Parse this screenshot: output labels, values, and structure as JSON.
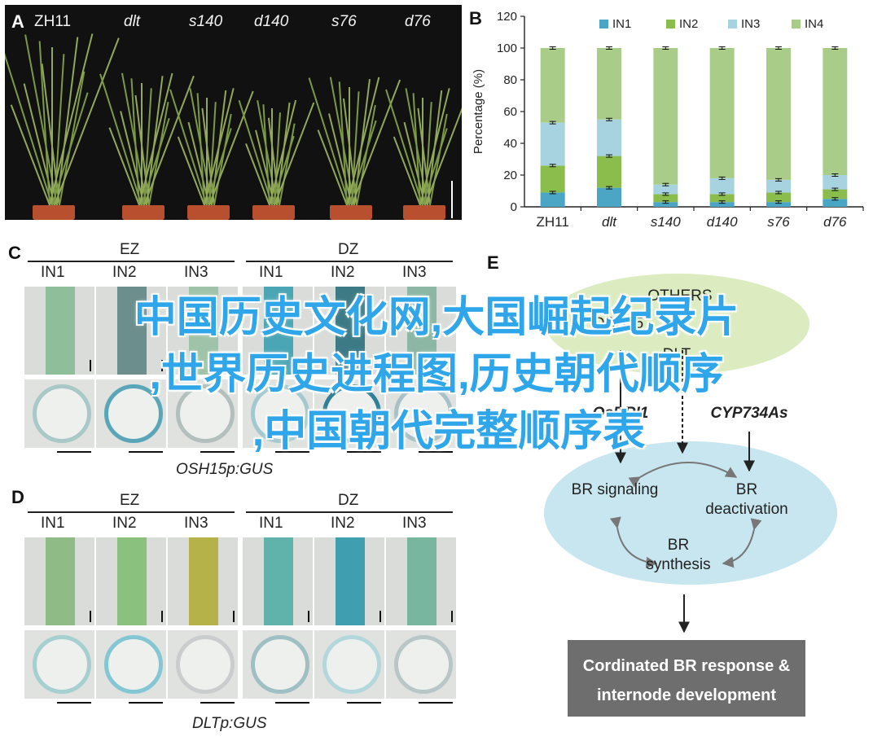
{
  "panels": {
    "a": {
      "label": "A",
      "plants": [
        "ZH11",
        "dlt",
        "s140",
        "d140",
        "s76",
        "d76"
      ]
    },
    "b": {
      "label": "B"
    },
    "c": {
      "label": "C",
      "groups": [
        "EZ",
        "DZ"
      ],
      "internodes": [
        "IN1",
        "IN2",
        "IN3"
      ],
      "gene": "OSH15p:GUS"
    },
    "d": {
      "label": "D",
      "groups": [
        "EZ",
        "DZ"
      ],
      "internodes": [
        "IN1",
        "IN2",
        "IN3"
      ],
      "gene": "DLTp:GUS"
    },
    "e": {
      "label": "E",
      "others": "OTHERS",
      "partial_left": "OSH15",
      "partial_dlt": "DLT",
      "obri": "OsBRI1",
      "cyp": "CYP734As",
      "br_signaling": "BR signaling",
      "br_deactivation": "BR deactivation",
      "br_synthesis": "BR synthesis",
      "response": "Cordinated BR response & internode development"
    }
  },
  "chart_data": {
    "type": "bar",
    "stacked": true,
    "categories": [
      "ZH11",
      "dlt",
      "s140",
      "d140",
      "s76",
      "d76"
    ],
    "series": [
      {
        "name": "IN1",
        "values": [
          9,
          12,
          3,
          3,
          3,
          5
        ],
        "color": "#4ba6c6"
      },
      {
        "name": "IN2",
        "values": [
          17,
          20,
          5,
          5,
          6,
          6
        ],
        "color": "#8bbd4c"
      },
      {
        "name": "IN3",
        "values": [
          27,
          23,
          6,
          10,
          8,
          9
        ],
        "color": "#a7d3e1"
      },
      {
        "name": "IN4",
        "values": [
          47,
          45,
          86,
          82,
          83,
          80
        ],
        "color": "#a9cd88"
      }
    ],
    "error_bar_tops": [
      [
        9,
        26,
        53,
        100
      ],
      [
        12,
        32,
        55,
        100
      ],
      [
        3,
        8,
        14,
        100
      ],
      [
        3,
        8,
        18,
        100
      ],
      [
        3,
        9,
        17,
        100
      ],
      [
        5,
        11,
        20,
        100
      ]
    ],
    "legend_order": [
      "IN1",
      "IN2",
      "IN3",
      "IN4"
    ],
    "ylabel": "Percentage (%)",
    "ylim": [
      0,
      120
    ],
    "yticks": [
      0,
      20,
      40,
      60,
      80,
      100,
      120
    ],
    "grid": false,
    "legend": "top"
  },
  "overlay": {
    "line1": "中国历史文化网,大国崛起纪录片",
    "line2": ",世界历史进程图,历史朝代顺序",
    "line3": ",中国朝代完整顺序表"
  },
  "colors": {
    "accent": "#2fa6ea",
    "ellipse_green": "#dcecc0",
    "ellipse_blue": "#c8e6ef",
    "response_box": "#6e6e6e"
  }
}
